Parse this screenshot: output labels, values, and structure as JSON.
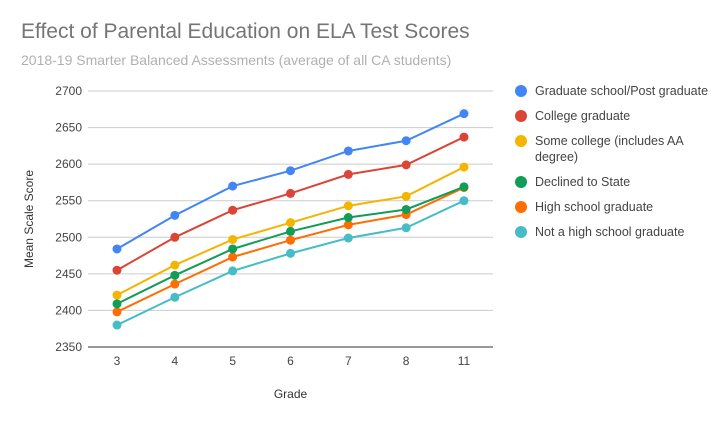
{
  "title": "Effect of Parental Education on ELA Test Scores",
  "subtitle": "2018-19 Smarter Balanced Assessments (average of all CA students)",
  "chart_data": {
    "type": "line",
    "title": "Effect of Parental Education on ELA Test Scores",
    "subtitle": "2018-19 Smarter Balanced Assessments (average of all CA students)",
    "xlabel": "Grade",
    "ylabel": "Mean Scale Score",
    "categories": [
      "3",
      "4",
      "5",
      "6",
      "7",
      "8",
      "11"
    ],
    "ylim": [
      2350,
      2700
    ],
    "yticks": [
      2350,
      2400,
      2450,
      2500,
      2550,
      2600,
      2650,
      2700
    ],
    "grid": true,
    "legend_position": "right",
    "series": [
      {
        "name": "Graduate school/Post graduate",
        "color": "#4285f4",
        "values": [
          2484,
          2530,
          2570,
          2591,
          2618,
          2632,
          2669
        ]
      },
      {
        "name": "College graduate",
        "color": "#db4437",
        "values": [
          2455,
          2500,
          2537,
          2560,
          2586,
          2599,
          2637
        ]
      },
      {
        "name": "Some college (includes AA degree)",
        "color": "#f4b400",
        "values": [
          2421,
          2462,
          2497,
          2520,
          2543,
          2556,
          2596
        ]
      },
      {
        "name": "Declined to State",
        "color": "#0f9d58",
        "values": [
          2409,
          2448,
          2484,
          2508,
          2527,
          2538,
          2569
        ]
      },
      {
        "name": "High school graduate",
        "color": "#ff6d00",
        "values": [
          2398,
          2436,
          2473,
          2496,
          2517,
          2531,
          2568
        ]
      },
      {
        "name": "Not a high school graduate",
        "color": "#46bdc6",
        "values": [
          2380,
          2418,
          2454,
          2478,
          2499,
          2513,
          2550
        ]
      }
    ]
  }
}
